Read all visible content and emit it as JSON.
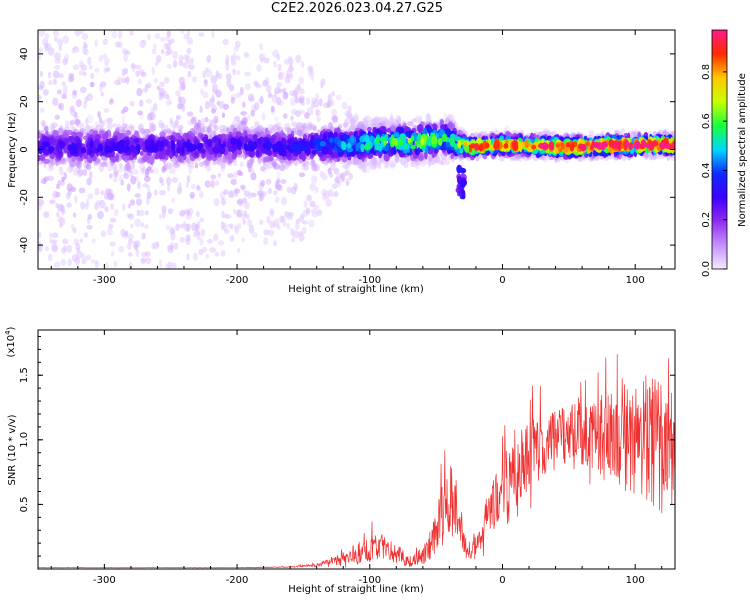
{
  "title": "C2E2.2026.023.04.27.G25",
  "chart_data": [
    {
      "type": "heatmap",
      "name": "spectrogram",
      "xlabel": "Height of straight line (km)",
      "ylabel": "Frequency (Hz)",
      "xlim": [
        -350,
        130
      ],
      "ylim": [
        -50,
        50
      ],
      "xticks": [
        -300,
        -200,
        -100,
        0,
        100
      ],
      "xtick_labels": [
        "-300",
        "-200",
        "-100",
        "0",
        "100"
      ],
      "yticks": [
        -40,
        -20,
        0,
        20,
        40
      ],
      "ytick_labels": [
        "-40",
        "-20",
        "0",
        "20",
        "40"
      ],
      "colorbar": {
        "label": "Normalized spectral amplitude",
        "range": [
          0,
          0.97
        ],
        "ticks": [
          0.0,
          0.2,
          0.4,
          0.6,
          0.8
        ],
        "tick_labels": [
          "0.0",
          "0.2",
          "0.4",
          "0.6",
          "0.8"
        ],
        "colormap": [
          "#f4eaff",
          "#c590ff",
          "#8f2cf0",
          "#3c00ff",
          "#0f2bff",
          "#00d8ff",
          "#19ff3c",
          "#c8ff00",
          "#ffc800",
          "#ff2a00",
          "#ff1a8c"
        ]
      },
      "band_profile": {
        "x": [
          -350,
          -300,
          -250,
          -200,
          -150,
          -130,
          -110,
          -90,
          -70,
          -50,
          -40,
          -33,
          -25,
          0,
          50,
          100,
          130
        ],
        "center_hz": [
          1,
          1,
          1,
          2,
          1,
          2,
          2,
          3,
          3,
          4,
          4,
          2,
          1,
          2,
          1,
          2,
          2
        ],
        "half_width_hz": [
          8,
          8,
          8,
          8,
          7,
          7,
          7,
          7,
          7,
          7,
          8,
          5,
          4,
          4,
          4,
          4,
          4
        ],
        "peak_amplitude": [
          0.25,
          0.25,
          0.25,
          0.25,
          0.3,
          0.38,
          0.45,
          0.5,
          0.55,
          0.55,
          0.45,
          0.55,
          0.75,
          0.75,
          0.8,
          0.85,
          0.85
        ],
        "scatter_spread_hz": [
          50,
          50,
          50,
          45,
          38,
          25,
          12,
          10,
          10,
          10,
          10,
          6,
          5,
          5,
          5,
          5,
          5
        ]
      }
    },
    {
      "type": "line",
      "name": "snr",
      "xlabel": "Height of straight line (km)",
      "ylabel": "SNR (10 * v/v)",
      "multiplier": "(x10",
      "multiplier_exp": "4",
      "multiplier_close": ")",
      "xlim": [
        -350,
        130
      ],
      "ylim": [
        0,
        1.85
      ],
      "xticks": [
        -300,
        -200,
        -100,
        0,
        100
      ],
      "xtick_labels": [
        "-300",
        "-200",
        "-100",
        "0",
        "100"
      ],
      "yticks": [
        0.5,
        1.0,
        1.5
      ],
      "ytick_labels": [
        "0.5",
        "1.0",
        "1.5"
      ],
      "color": "#f03030",
      "envelope": {
        "x": [
          -350,
          -200,
          -160,
          -140,
          -130,
          -120,
          -110,
          -100,
          -90,
          -80,
          -70,
          -60,
          -55,
          -50,
          -45,
          -40,
          -35,
          -30,
          -25,
          -20,
          -10,
          0,
          10,
          20,
          30,
          40,
          50,
          60,
          70,
          80,
          90,
          100,
          110,
          120,
          130
        ],
        "y": [
          0.01,
          0.01,
          0.015,
          0.03,
          0.05,
          0.08,
          0.12,
          0.16,
          0.18,
          0.12,
          0.06,
          0.1,
          0.18,
          0.3,
          0.45,
          0.55,
          0.45,
          0.2,
          0.12,
          0.22,
          0.42,
          0.62,
          0.78,
          0.88,
          0.96,
          1.0,
          1.05,
          1.03,
          1.05,
          1.02,
          1.05,
          1.0,
          1.02,
          0.95,
          0.9
        ]
      },
      "noise_fraction": [
        0.1,
        0.1,
        0.25,
        0.4,
        0.5,
        0.55,
        0.6,
        0.6,
        0.55,
        0.6,
        0.7,
        0.6,
        0.55,
        0.5,
        0.45,
        0.45,
        0.5,
        0.55,
        0.55,
        0.45,
        0.4,
        0.35,
        0.3,
        0.28,
        0.25,
        0.22,
        0.2,
        0.22,
        0.25,
        0.3,
        0.35,
        0.4,
        0.45,
        0.5,
        0.45
      ]
    }
  ]
}
